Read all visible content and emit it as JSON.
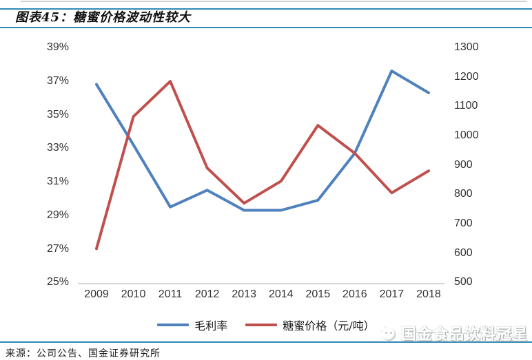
{
  "header": {
    "title": "图表45：糖蜜价格波动性较大"
  },
  "chart_data": {
    "type": "line",
    "title": "图表45：糖蜜价格波动性较大",
    "x_labels": [
      "2009",
      "2010",
      "2011",
      "2012",
      "2013",
      "2014",
      "2015",
      "2016",
      "2017",
      "2018"
    ],
    "series": [
      {
        "name": "毛利率",
        "slug": "gross-margin",
        "axis": "left",
        "unit": "%",
        "color": "#4F81BD",
        "values": [
          36.8,
          33.2,
          29.5,
          30.5,
          29.3,
          29.3,
          29.9,
          32.7,
          37.6,
          36.3
        ]
      },
      {
        "name": "糖蜜价格（元/吨）",
        "slug": "molasses-price",
        "axis": "right",
        "unit": "元/吨",
        "color": "#C0504D",
        "values": [
          615,
          1065,
          1185,
          890,
          770,
          845,
          1035,
          940,
          805,
          880
        ]
      }
    ],
    "y_left": {
      "min": 25,
      "max": 39,
      "ticks": [
        "39%",
        "37%",
        "35%",
        "33%",
        "31%",
        "29%",
        "27%",
        "25%"
      ]
    },
    "y_right": {
      "min": 500,
      "max": 1300,
      "ticks": [
        "1300",
        "1200",
        "1100",
        "1000",
        "900",
        "800",
        "700",
        "600",
        "500"
      ]
    },
    "grid": false,
    "legend_position": "bottom"
  },
  "footer": {
    "source": "来源：公司公告、国金证券研究所"
  },
  "watermark": {
    "text": "国金食品饮料冠星"
  },
  "colors": {
    "rule": "#2F89B5",
    "axis_line": "#C6C6C6",
    "series_blue": "#4F81BD",
    "series_red": "#C0504D"
  }
}
